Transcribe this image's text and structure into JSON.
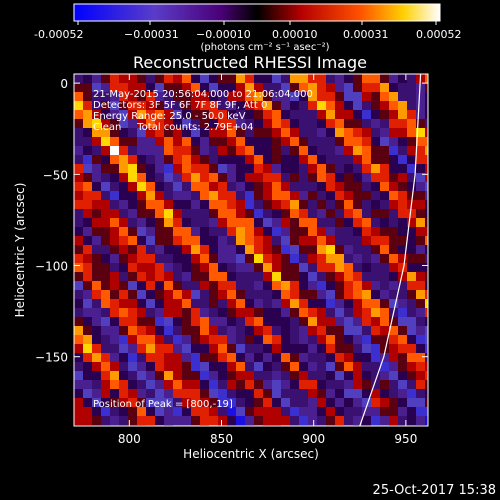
{
  "chart_data": {
    "type": "heatmap",
    "title": "Reconstructed RHESSI Image",
    "xlabel": "Heliocentric X (arcsec)",
    "ylabel": "Heliocentric Y (arcsec)",
    "xlim": [
      770,
      962
    ],
    "ylim": [
      -188,
      5
    ],
    "x_ticks": [
      800,
      850,
      900,
      950
    ],
    "y_ticks": [
      0,
      -50,
      -100,
      -150
    ],
    "colorbar": {
      "range": [
        -0.00052,
        0.00052
      ],
      "tick_values": [
        -0.00052,
        -0.00031,
        -0.0001,
        0.0001,
        0.00031,
        0.00052
      ],
      "tick_labels": [
        "-0.00052",
        "−0.00031",
        "−0.00010",
        "0.00010",
        "0.00031",
        "0.00052"
      ],
      "unit_label": "(photons cm⁻² s⁻¹ asec⁻²)"
    },
    "annotations": [
      "21-May-2015 20:56:04.000 to 21:06:04.000",
      "Detectors: 3F 5F 6F 7F 8F 9F, Att 0",
      "Energy Range: 25.0 - 50.0 keV",
      "Clean     Total counts: 2.79E+04"
    ],
    "peak_label": "Position of Peak = [800,-19]",
    "peak": [
      800,
      -19
    ],
    "limb_curve": [
      [
        925,
        -188
      ],
      [
        938,
        -150
      ],
      [
        949,
        -100
      ],
      [
        955,
        -50
      ],
      [
        958,
        5
      ]
    ],
    "stripe_direction": "diagonal, upper-left to lower-right"
  },
  "footer": {
    "timestamp": "25-Oct-2017 15:38"
  }
}
